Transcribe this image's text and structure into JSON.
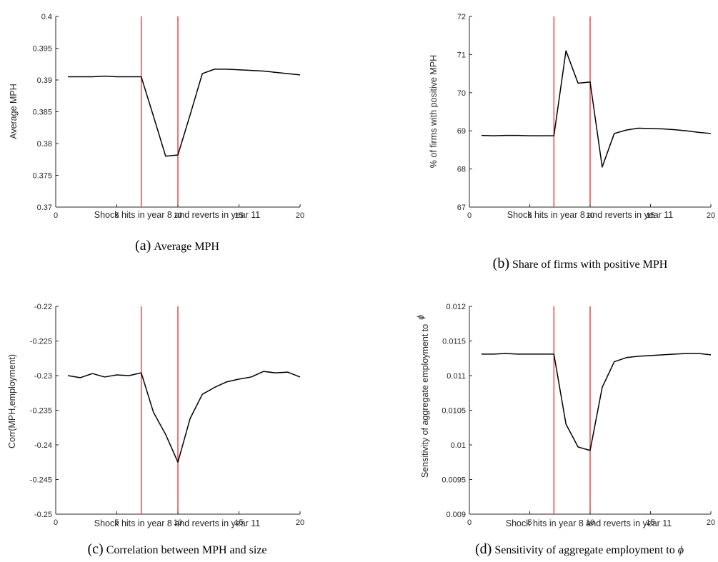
{
  "colors": {
    "series": "#000000",
    "vline": "#e01b1b",
    "axis": "#262626"
  },
  "chart_data": [
    {
      "type": "line",
      "panel": "a",
      "caption": {
        "letter": "(a)",
        "text": "Average MPH"
      },
      "xlabel": "Shock hits in year 8 and reverts in year 11",
      "ylabel": "Average MPH",
      "xlim": [
        0,
        20
      ],
      "ylim": [
        0.37,
        0.4
      ],
      "xticks": [
        "0",
        "5",
        "10",
        "15",
        "20"
      ],
      "yticks": [
        "0.37",
        "0.375",
        "0.38",
        "0.385",
        "0.39",
        "0.395",
        "0.4"
      ],
      "vlines": [
        7,
        10
      ],
      "grid": false,
      "x": [
        1,
        2,
        3,
        4,
        5,
        6,
        7,
        8,
        9,
        10,
        11,
        12,
        13,
        14,
        15,
        16,
        17,
        18,
        19,
        20
      ],
      "values": [
        0.3905,
        0.3905,
        0.3905,
        0.3906,
        0.3905,
        0.3905,
        0.3905,
        0.3843,
        0.378,
        0.3782,
        0.3845,
        0.391,
        0.3917,
        0.3917,
        0.3916,
        0.3915,
        0.3914,
        0.3912,
        0.391,
        0.3908
      ]
    },
    {
      "type": "line",
      "panel": "b",
      "caption": {
        "letter": "(b)",
        "text": "Share of firms with positive MPH"
      },
      "xlabel": "Shock hits in year 8 and reverts in year 11",
      "ylabel": "% of firms with positive MPH",
      "xlim": [
        0,
        20
      ],
      "ylim": [
        67,
        72
      ],
      "xticks": [
        "0",
        "5",
        "10",
        "15",
        "20"
      ],
      "yticks": [
        "67",
        "68",
        "69",
        "70",
        "71",
        "72"
      ],
      "vlines": [
        7,
        10
      ],
      "grid": false,
      "x": [
        1,
        2,
        3,
        4,
        5,
        6,
        7,
        8,
        9,
        10,
        11,
        12,
        13,
        14,
        15,
        16,
        17,
        18,
        19,
        20
      ],
      "values": [
        68.88,
        68.87,
        68.88,
        68.88,
        68.87,
        68.87,
        68.87,
        71.1,
        70.25,
        70.28,
        68.05,
        68.93,
        69.02,
        69.07,
        69.06,
        69.05,
        69.03,
        69.0,
        68.96,
        68.93
      ]
    },
    {
      "type": "line",
      "panel": "c",
      "caption": {
        "letter": "(c)",
        "text": "Correlation between MPH and size"
      },
      "xlabel": "Shock hits in year 8 and reverts in year 11",
      "ylabel": "Corr(MPH,employment)",
      "xlim": [
        0,
        20
      ],
      "ylim": [
        -0.25,
        -0.22
      ],
      "xticks": [
        "0",
        "5",
        "10",
        "15",
        "20"
      ],
      "yticks": [
        "-0.25",
        "-0.245",
        "-0.24",
        "-0.235",
        "-0.23",
        "-0.225",
        "-0.22"
      ],
      "vlines": [
        7,
        10
      ],
      "grid": false,
      "x": [
        1,
        2,
        3,
        4,
        5,
        6,
        7,
        8,
        9,
        10,
        11,
        12,
        13,
        14,
        15,
        16,
        17,
        18,
        19,
        20
      ],
      "values": [
        -0.23,
        -0.2303,
        -0.2297,
        -0.2302,
        -0.2299,
        -0.23,
        -0.2296,
        -0.2353,
        -0.2385,
        -0.2425,
        -0.2362,
        -0.2327,
        -0.2317,
        -0.2309,
        -0.2305,
        -0.2302,
        -0.2294,
        -0.2296,
        -0.2295,
        -0.2302
      ]
    },
    {
      "type": "line",
      "panel": "d",
      "caption": {
        "letter": "(d)",
        "text": "Sensitivity of aggregate employment to ",
        "symbol": "ϕ"
      },
      "xlabel": "Shock hits in year 8 and reverts in year 11",
      "ylabel": "Sensitivity of aggregate employment to",
      "ylabel_symbol": "ϕ",
      "xlim": [
        0,
        20
      ],
      "ylim": [
        0.009,
        0.012
      ],
      "xticks": [
        "0",
        "5",
        "10",
        "15",
        "20"
      ],
      "yticks": [
        "0.009",
        "0.0095",
        "0.01",
        "0.0105",
        "0.011",
        "0.0115",
        "0.012"
      ],
      "vlines": [
        7,
        10
      ],
      "grid": false,
      "x": [
        1,
        2,
        3,
        4,
        5,
        6,
        7,
        8,
        9,
        10,
        11,
        12,
        13,
        14,
        15,
        16,
        17,
        18,
        19,
        20
      ],
      "values": [
        0.01131,
        0.01131,
        0.01132,
        0.01131,
        0.01131,
        0.01131,
        0.01131,
        0.0103,
        0.00997,
        0.00992,
        0.01083,
        0.0112,
        0.01126,
        0.01128,
        0.01129,
        0.0113,
        0.01131,
        0.01132,
        0.01132,
        0.0113
      ]
    }
  ]
}
